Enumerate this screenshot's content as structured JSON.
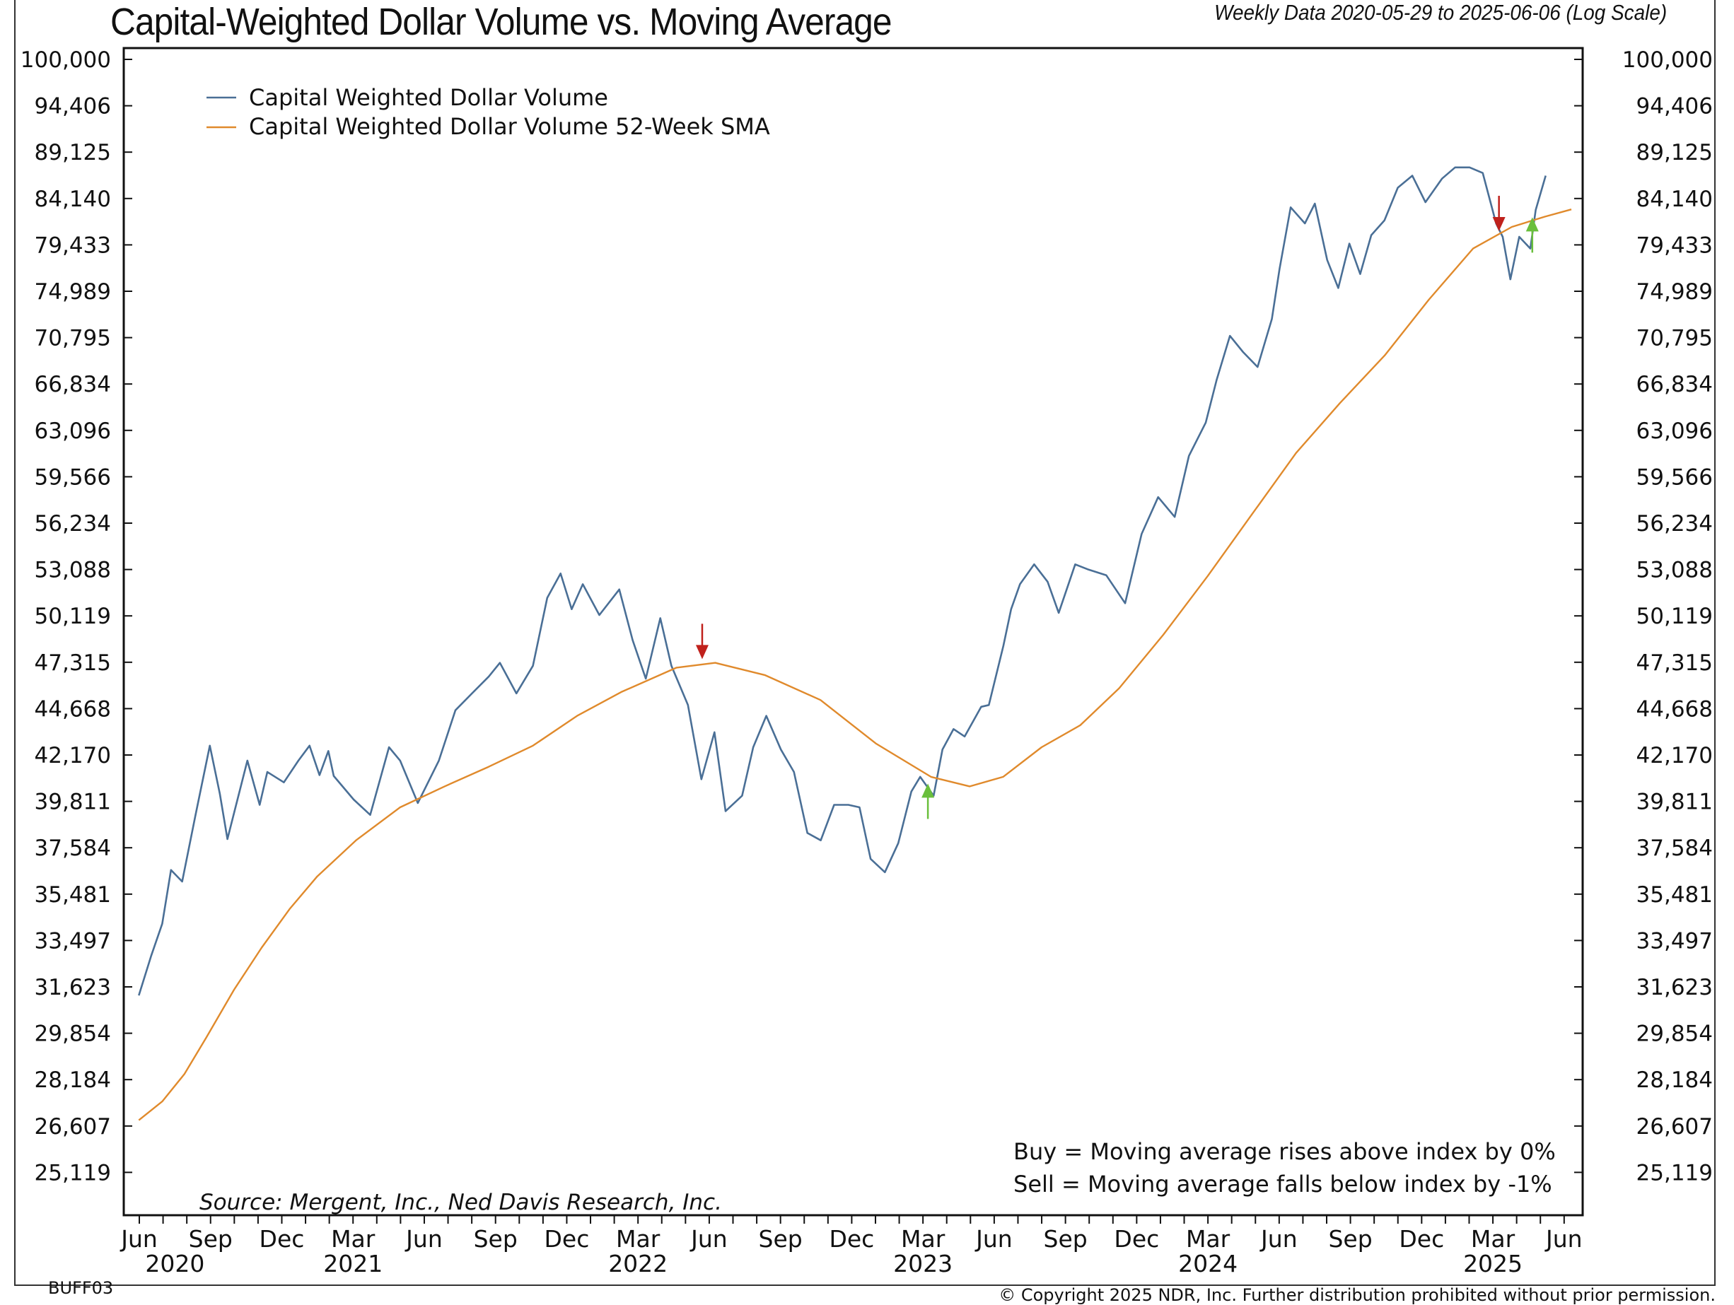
{
  "chart_data": {
    "type": "line",
    "title": "Capital-Weighted Dollar Volume vs. Moving Average",
    "subtitle": "Weekly Data 2020-05-29 to 2025-06-06 (Log Scale)",
    "y_scale": "log",
    "ylim": [
      24500,
      100000
    ],
    "xlim": [
      2020.4,
      2025.46
    ],
    "x_units": "decimal year",
    "grid": false,
    "legend_position": "top-left",
    "y_ticks": [
      "100,000",
      "94,406",
      "89,125",
      "84,140",
      "79,433",
      "74,989",
      "70,795",
      "66,834",
      "63,096",
      "59,566",
      "56,234",
      "53,088",
      "50,119",
      "47,315",
      "44,668",
      "42,170",
      "39,811",
      "37,584",
      "35,481",
      "33,497",
      "31,623",
      "29,854",
      "28,184",
      "26,607",
      "25,119"
    ],
    "y_tick_values": [
      100000,
      94406,
      89125,
      84140,
      79433,
      74989,
      70795,
      66834,
      63096,
      59566,
      56234,
      53088,
      50119,
      47315,
      44668,
      42170,
      39811,
      37584,
      35481,
      33497,
      31623,
      29854,
      28184,
      26607,
      25119
    ],
    "x_ticks": [
      {
        "label": "Jun",
        "x": 2020.4167
      },
      {
        "label": "Sep",
        "x": 2020.6667
      },
      {
        "label": "Dec",
        "x": 2020.9167
      },
      {
        "label": "Mar",
        "x": 2021.1667
      },
      {
        "label": "Jun",
        "x": 2021.4167
      },
      {
        "label": "Sep",
        "x": 2021.6667
      },
      {
        "label": "Dec",
        "x": 2021.9167
      },
      {
        "label": "Mar",
        "x": 2022.1667
      },
      {
        "label": "Jun",
        "x": 2022.4167
      },
      {
        "label": "Sep",
        "x": 2022.6667
      },
      {
        "label": "Dec",
        "x": 2022.9167
      },
      {
        "label": "Mar",
        "x": 2023.1667
      },
      {
        "label": "Jun",
        "x": 2023.4167
      },
      {
        "label": "Sep",
        "x": 2023.6667
      },
      {
        "label": "Dec",
        "x": 2023.9167
      },
      {
        "label": "Mar",
        "x": 2024.1667
      },
      {
        "label": "Jun",
        "x": 2024.4167
      },
      {
        "label": "Sep",
        "x": 2024.6667
      },
      {
        "label": "Dec",
        "x": 2024.9167
      },
      {
        "label": "Mar",
        "x": 2025.1667
      },
      {
        "label": "Jun",
        "x": 2025.4167
      }
    ],
    "year_labels": [
      {
        "label": "2020",
        "x": 2020.5417
      },
      {
        "label": "2021",
        "x": 2021.1667
      },
      {
        "label": "2022",
        "x": 2022.1667
      },
      {
        "label": "2023",
        "x": 2023.1667
      },
      {
        "label": "2024",
        "x": 2024.1667
      },
      {
        "label": "2025",
        "x": 2025.1667
      }
    ],
    "series": [
      {
        "name": "Capital Weighted Dollar Volume",
        "color": "#4a6f96",
        "x": [
          2020.415,
          2020.458,
          2020.497,
          2020.528,
          2020.567,
          2020.613,
          2020.664,
          2020.699,
          2020.726,
          2020.796,
          2020.839,
          2020.866,
          2020.924,
          2020.975,
          2021.014,
          2021.049,
          2021.08,
          2021.099,
          2021.169,
          2021.227,
          2021.293,
          2021.332,
          2021.394,
          2021.468,
          2021.526,
          2021.584,
          2021.643,
          2021.682,
          2021.74,
          2021.798,
          2021.848,
          2021.895,
          2021.934,
          2021.973,
          2022.031,
          2022.101,
          2022.148,
          2022.194,
          2022.245,
          2022.284,
          2022.342,
          2022.389,
          2022.435,
          2022.474,
          2022.532,
          2022.571,
          2022.617,
          2022.668,
          2022.714,
          2022.761,
          2022.808,
          2022.855,
          2022.905,
          2022.944,
          2022.983,
          2023.033,
          2023.08,
          2023.126,
          2023.157,
          2023.204,
          2023.235,
          2023.274,
          2023.313,
          2023.371,
          2023.398,
          2023.449,
          2023.476,
          2023.507,
          2023.557,
          2023.604,
          2023.643,
          2023.701,
          2023.748,
          2023.81,
          2023.876,
          2023.934,
          2023.992,
          2024.05,
          2024.1,
          2024.159,
          2024.197,
          2024.244,
          2024.29,
          2024.341,
          2024.391,
          2024.418,
          2024.457,
          2024.507,
          2024.542,
          2024.585,
          2024.624,
          2024.663,
          2024.701,
          2024.74,
          2024.786,
          2024.833,
          2024.884,
          2024.93,
          2024.988,
          2025.034,
          2025.085,
          2025.131,
          2025.178,
          2025.201,
          2025.228,
          2025.259,
          2025.298,
          2025.317,
          2025.352
        ],
        "values": [
          31290,
          32850,
          34200,
          36560,
          36040,
          39080,
          42660,
          40200,
          37990,
          41880,
          39640,
          41290,
          40760,
          41880,
          42660,
          41130,
          42380,
          41090,
          39900,
          39150,
          42580,
          41880,
          39730,
          41880,
          44580,
          45520,
          46480,
          47280,
          45520,
          47110,
          51250,
          52830,
          50540,
          52130,
          50170,
          51790,
          48630,
          46360,
          49980,
          47110,
          44870,
          40920,
          43380,
          39330,
          40090,
          42580,
          44270,
          42460,
          41290,
          38280,
          37930,
          39640,
          39640,
          39520,
          37070,
          36460,
          37800,
          40300,
          41040,
          40090,
          42460,
          43550,
          43150,
          44770,
          44870,
          48300,
          50540,
          52130,
          53430,
          52290,
          50310,
          53430,
          53080,
          52710,
          50910,
          55480,
          58080,
          56670,
          61130,
          63710,
          67150,
          70950,
          69540,
          68260,
          72450,
          77110,
          83220,
          81580,
          83610,
          77960,
          75290,
          79560,
          76610,
          80400,
          81880,
          85280,
          86560,
          83760,
          86240,
          87450,
          87450,
          86850,
          81580,
          80230,
          76110,
          80230,
          79070,
          82950,
          86560
        ]
      },
      {
        "name": "Capital Weighted Dollar Volume 52-Week SMA",
        "color": "#e08a2c",
        "x": [
          2020.415,
          2020.497,
          2020.575,
          2020.652,
          2020.749,
          2020.846,
          2020.944,
          2021.041,
          2021.177,
          2021.332,
          2021.488,
          2021.643,
          2021.798,
          2021.953,
          2022.108,
          2022.302,
          2022.438,
          2022.613,
          2022.807,
          2023.001,
          2023.195,
          2023.331,
          2023.448,
          2023.583,
          2023.719,
          2023.855,
          2024.01,
          2024.166,
          2024.321,
          2024.476,
          2024.631,
          2024.787,
          2024.942,
          2025.097,
          2025.233,
          2025.349,
          2025.442
        ],
        "values": [
          26800,
          27430,
          28380,
          29700,
          31510,
          33200,
          34830,
          36270,
          37930,
          39520,
          40560,
          41560,
          42660,
          44270,
          45600,
          47000,
          47280,
          46560,
          45150,
          42780,
          41040,
          40560,
          41040,
          42580,
          43760,
          45810,
          48960,
          52660,
          56850,
          61350,
          65300,
          69250,
          74210,
          79070,
          81220,
          82260,
          83010
        ]
      }
    ],
    "signals": [
      {
        "type": "sell",
        "color": "#c0211c",
        "x": 2022.392,
        "value": 47500
      },
      {
        "type": "buy",
        "color": "#6abf3c",
        "x": 2023.184,
        "value": 40700
      },
      {
        "type": "sell",
        "color": "#c0211c",
        "x": 2025.188,
        "value": 80800
      },
      {
        "type": "buy",
        "color": "#6abf3c",
        "x": 2025.305,
        "value": 82200
      }
    ],
    "legend": [
      "Capital Weighted Dollar Volume",
      "Capital Weighted Dollar Volume 52-Week SMA"
    ],
    "annotations": {
      "buy_rule": "Buy = Moving average rises above index by 0%",
      "sell_rule": "Sell = Moving average falls below index by -1%",
      "source": "Source:   Mergent, Inc., Ned Davis Research, Inc."
    }
  },
  "footer": {
    "chart_id": "BUFF03",
    "copyright": "© Copyright 2025 NDR, Inc. Further distribution prohibited without prior permission."
  }
}
